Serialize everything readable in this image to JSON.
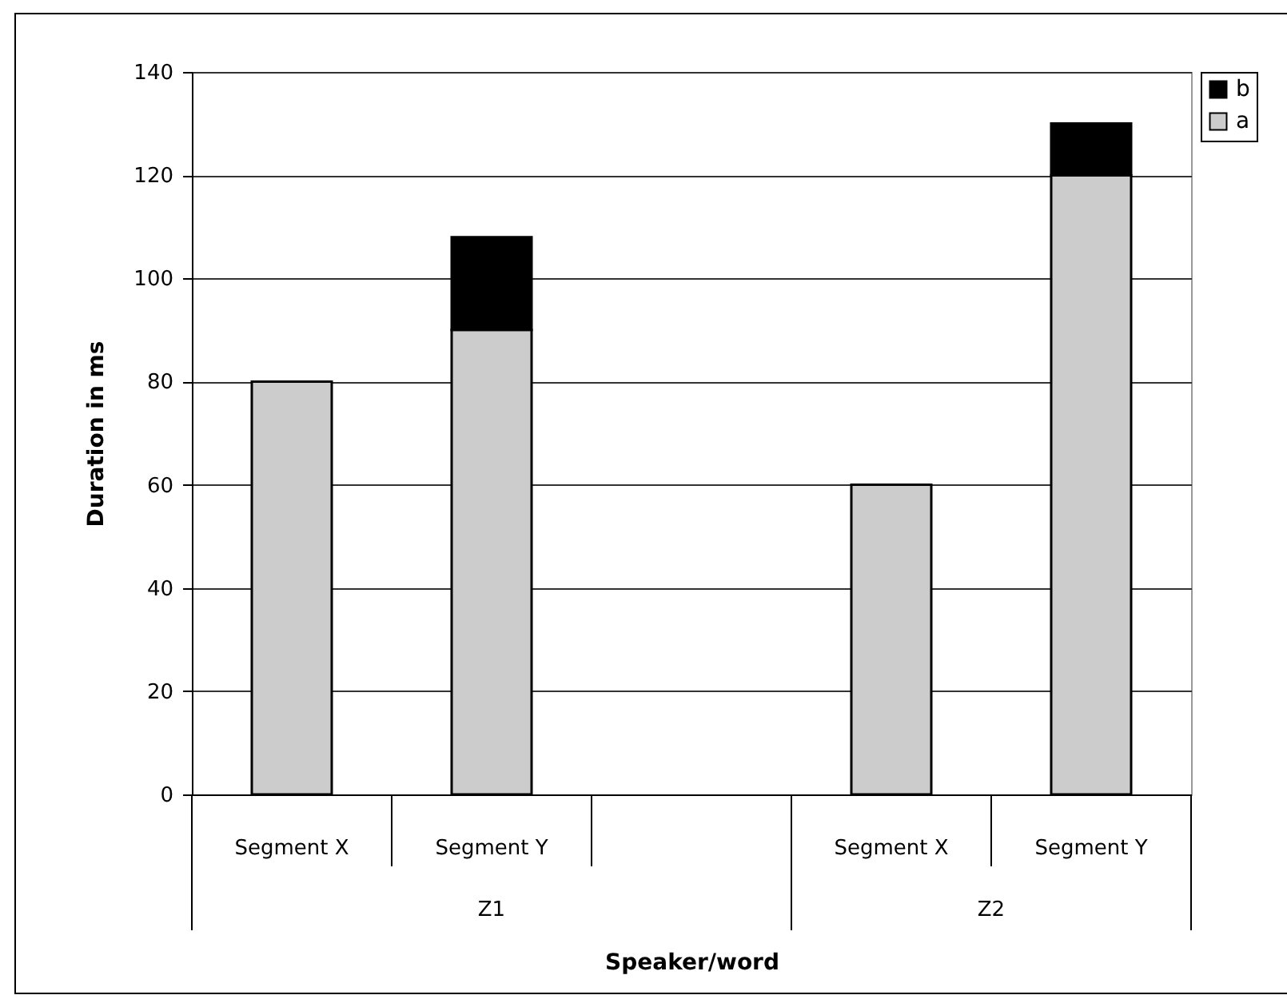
{
  "chart_data": {
    "type": "bar",
    "stacked": true,
    "xlabel": "Speaker/word",
    "ylabel": "Duration in ms",
    "categories": [
      "Segment X",
      "Segment Y",
      null,
      "Segment X",
      "Segment Y"
    ],
    "series": [
      {
        "name": "a",
        "color": "#cccccc",
        "values": [
          80,
          90,
          null,
          60,
          120
        ]
      },
      {
        "name": "b",
        "color": "#000000",
        "values": [
          null,
          18,
          null,
          null,
          10
        ]
      }
    ],
    "ylim": [
      0,
      140
    ],
    "yticks": [
      0,
      20,
      40,
      60,
      80,
      100,
      120,
      140
    ],
    "grid": "y",
    "legend": "right",
    "annotations": [
      "Z1",
      "Z2"
    ]
  }
}
